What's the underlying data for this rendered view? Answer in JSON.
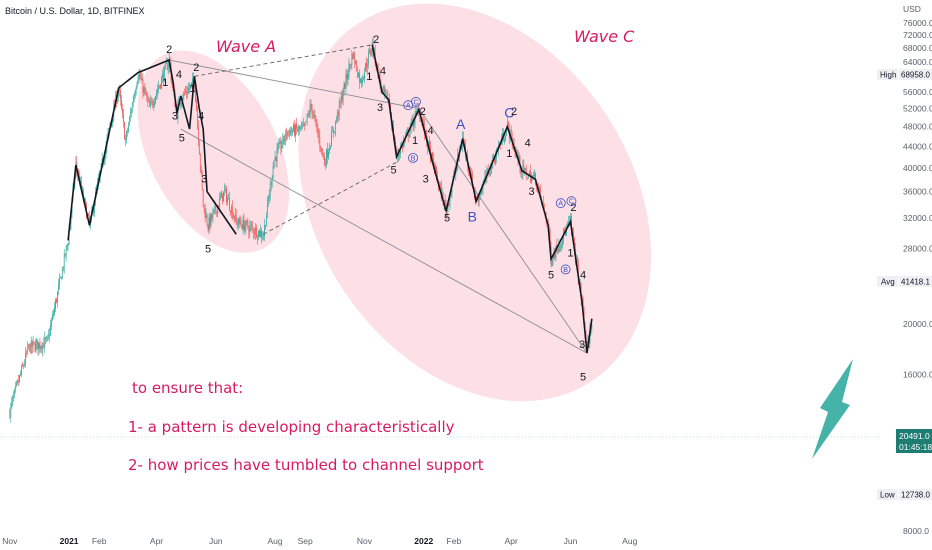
{
  "chart_data": {
    "type": "candlestick",
    "title": "Bitcoin / U.S. Dollar, 1D, BITFINEX",
    "currency": "USD",
    "y_scale": "log",
    "y_ticks": [
      8000,
      12000,
      16000,
      20000,
      24000,
      28000,
      32000,
      36000,
      40000,
      44000,
      48000,
      52000,
      56000,
      60000,
      64000,
      68000,
      72000,
      76000
    ],
    "x_ticks": [
      {
        "label": "Nov",
        "date": "2020-11-01",
        "bold": false
      },
      {
        "label": "2021",
        "date": "2021-01-01",
        "bold": true
      },
      {
        "label": "Feb",
        "date": "2021-02-01",
        "bold": false
      },
      {
        "label": "Apr",
        "date": "2021-04-01",
        "bold": false
      },
      {
        "label": "Jun",
        "date": "2021-06-01",
        "bold": false
      },
      {
        "label": "Aug",
        "date": "2021-08-01",
        "bold": false
      },
      {
        "label": "Sep",
        "date": "2021-09-01",
        "bold": false
      },
      {
        "label": "Nov",
        "date": "2021-11-01",
        "bold": false
      },
      {
        "label": "2022",
        "date": "2022-01-01",
        "bold": true
      },
      {
        "label": "Feb",
        "date": "2022-02-01",
        "bold": false
      },
      {
        "label": "Apr",
        "date": "2022-04-01",
        "bold": false
      },
      {
        "label": "Jun",
        "date": "2022-06-01",
        "bold": false
      },
      {
        "label": "Aug",
        "date": "2022-08-01",
        "bold": false
      }
    ],
    "price_path": [
      [
        "2020-11-01",
        13600
      ],
      [
        "2020-11-20",
        18000
      ],
      [
        "2020-12-10",
        18500
      ],
      [
        "2020-12-31",
        29000
      ],
      [
        "2021-01-08",
        40500
      ],
      [
        "2021-01-22",
        31000
      ],
      [
        "2021-02-10",
        46000
      ],
      [
        "2021-02-21",
        57000
      ],
      [
        "2021-02-28",
        45000
      ],
      [
        "2021-03-13",
        61000
      ],
      [
        "2021-03-25",
        52000
      ],
      [
        "2021-04-14",
        64500
      ],
      [
        "2021-04-18",
        56000
      ],
      [
        "2021-04-22",
        51000
      ],
      [
        "2021-04-26",
        54500
      ],
      [
        "2021-05-05",
        57000
      ],
      [
        "2021-05-10",
        58500
      ],
      [
        "2021-05-19",
        34000
      ],
      [
        "2021-05-24",
        31000
      ],
      [
        "2021-06-10",
        36000
      ],
      [
        "2021-06-22",
        31500
      ],
      [
        "2021-07-20",
        29800
      ],
      [
        "2021-07-31",
        41500
      ],
      [
        "2021-08-14",
        47000
      ],
      [
        "2021-08-31",
        47500
      ],
      [
        "2021-09-07",
        52700
      ],
      [
        "2021-09-21",
        41000
      ],
      [
        "2021-10-01",
        48000
      ],
      [
        "2021-10-20",
        66500
      ],
      [
        "2021-10-28",
        58500
      ],
      [
        "2021-11-09",
        69000
      ],
      [
        "2021-11-19",
        56000
      ],
      [
        "2021-11-26",
        54000
      ],
      [
        "2021-12-04",
        42000
      ],
      [
        "2021-12-27",
        51800
      ],
      [
        "2022-01-10",
        41000
      ],
      [
        "2022-01-24",
        33000
      ],
      [
        "2022-02-10",
        45500
      ],
      [
        "2022-02-24",
        34500
      ],
      [
        "2022-03-28",
        48000
      ],
      [
        "2022-04-12",
        39500
      ],
      [
        "2022-04-26",
        38000
      ],
      [
        "2022-05-09",
        31000
      ],
      [
        "2022-05-12",
        26700
      ],
      [
        "2022-05-24",
        29500
      ],
      [
        "2022-06-01",
        31500
      ],
      [
        "2022-06-13",
        22000
      ],
      [
        "2022-06-18",
        17600
      ],
      [
        "2022-06-23",
        20491
      ]
    ],
    "wave_path": [
      [
        "2020-12-31",
        29000
      ],
      [
        "2021-01-08",
        40500
      ],
      [
        "2021-01-22",
        31000
      ],
      [
        "2021-02-21",
        57000
      ],
      [
        "2021-03-13",
        61000
      ],
      [
        "2021-04-14",
        64500
      ],
      [
        "2021-04-18",
        58500
      ],
      [
        "2021-04-22",
        51000
      ],
      [
        "2021-04-26",
        55000
      ],
      [
        "2021-05-05",
        47500
      ],
      [
        "2021-05-10",
        60000
      ],
      [
        "2021-05-15",
        52000
      ],
      [
        "2021-05-19",
        47500
      ],
      [
        "2021-05-23",
        36000
      ],
      [
        "2021-06-22",
        29800
      ]
    ],
    "wave_labels": [
      {
        "text": "2",
        "date": "2021-04-14",
        "price": 66500,
        "size": "small"
      },
      {
        "text": "1",
        "date": "2021-04-10",
        "price": 57500,
        "size": "small"
      },
      {
        "text": "4",
        "date": "2021-04-24",
        "price": 59500,
        "size": "small"
      },
      {
        "text": "3",
        "date": "2021-04-20",
        "price": 49500,
        "size": "small"
      },
      {
        "text": "5",
        "date": "2021-04-27",
        "price": 45000,
        "size": "small"
      },
      {
        "text": "2",
        "date": "2021-05-12",
        "price": 61500,
        "size": "small"
      },
      {
        "text": "1",
        "date": "2021-05-08",
        "price": 56000,
        "size": "small"
      },
      {
        "text": "4",
        "date": "2021-05-17",
        "price": 49500,
        "size": "small"
      },
      {
        "text": "3",
        "date": "2021-05-20",
        "price": 37500,
        "size": "small"
      },
      {
        "text": "5",
        "date": "2021-05-24",
        "price": 27500,
        "size": "small"
      },
      {
        "text": "2",
        "date": "2021-11-13",
        "price": 69500,
        "size": "small"
      },
      {
        "text": "1",
        "date": "2021-11-06",
        "price": 59000,
        "size": "small"
      },
      {
        "text": "4",
        "date": "2021-11-20",
        "price": 60500,
        "size": "small"
      },
      {
        "text": "3",
        "date": "2021-11-17",
        "price": 51500,
        "size": "small"
      },
      {
        "text": "5",
        "date": "2021-12-01",
        "price": 39000,
        "size": "small"
      },
      {
        "text": "2",
        "date": "2021-12-31",
        "price": 50500,
        "size": "small"
      },
      {
        "text": "1",
        "date": "2021-12-23",
        "price": 44500,
        "size": "small"
      },
      {
        "text": "4",
        "date": "2022-01-08",
        "price": 46500,
        "size": "small"
      },
      {
        "text": "3",
        "date": "2022-01-03",
        "price": 37500,
        "size": "small"
      },
      {
        "text": "5",
        "date": "2022-01-25",
        "price": 31500,
        "size": "small"
      },
      {
        "text": "A",
        "date": "2022-02-08",
        "price": 47500,
        "size": "big"
      },
      {
        "text": "B",
        "date": "2022-02-20",
        "price": 31500,
        "size": "big"
      },
      {
        "text": "C",
        "date": "2022-03-30",
        "price": 50000,
        "size": "big"
      },
      {
        "text": "2",
        "date": "2022-04-04",
        "price": 50500,
        "size": "small"
      },
      {
        "text": "1",
        "date": "2022-03-30",
        "price": 42000,
        "size": "small"
      },
      {
        "text": "4",
        "date": "2022-04-18",
        "price": 44000,
        "size": "small"
      },
      {
        "text": "3",
        "date": "2022-04-22",
        "price": 35500,
        "size": "small"
      },
      {
        "text": "5",
        "date": "2022-05-12",
        "price": 24500,
        "size": "small"
      },
      {
        "text": "2",
        "date": "2022-06-04",
        "price": 33000,
        "size": "small"
      },
      {
        "text": "1",
        "date": "2022-06-01",
        "price": 27000,
        "size": "small"
      },
      {
        "text": "4",
        "date": "2022-06-14",
        "price": 24500,
        "size": "small"
      },
      {
        "text": "3",
        "date": "2022-06-13",
        "price": 18000,
        "size": "small"
      },
      {
        "text": "5",
        "date": "2022-06-14",
        "price": 15600,
        "size": "small"
      }
    ],
    "circle_labels": [
      {
        "text": "A",
        "date": "2021-12-16",
        "price": 52800
      },
      {
        "text": "B",
        "date": "2021-12-21",
        "price": 41800
      },
      {
        "text": "C",
        "date": "2021-12-24",
        "price": 53600
      },
      {
        "text": "A",
        "date": "2022-05-22",
        "price": 34200
      },
      {
        "text": "B",
        "date": "2022-05-27",
        "price": 25500
      },
      {
        "text": "C",
        "date": "2022-06-02",
        "price": 34500
      }
    ],
    "trendlines": [
      {
        "style": "solid",
        "from": [
          "2021-04-14",
          64500
        ],
        "to": [
          "2021-12-27",
          52000
        ]
      },
      {
        "style": "solid",
        "from": [
          "2021-12-27",
          52000
        ],
        "to": [
          "2022-06-18",
          17600
        ]
      },
      {
        "style": "solid",
        "from": [
          "2021-04-26",
          47500
        ],
        "to": [
          "2022-06-18",
          17600
        ]
      },
      {
        "style": "dashed",
        "from": [
          "2021-05-10",
          60000
        ],
        "to": [
          "2021-11-09",
          69000
        ]
      },
      {
        "style": "dashed",
        "from": [
          "2021-07-20",
          29800
        ],
        "to": [
          "2021-12-04",
          41000
        ]
      }
    ],
    "annotations": {
      "wave_a_title": "Wave A",
      "wave_c_title": "Wave C",
      "note_line1": "to ensure that:",
      "note_line2": "1- a pattern is developing characteristically",
      "note_line3": "2- how prices have tumbled to channel support"
    },
    "markers": {
      "high_label": "High",
      "high_value": "68958.0",
      "high_price": 68958,
      "avg_label": "Avg",
      "avg_value": "41418.1",
      "avg_price": 41418.1,
      "low_label": "Low",
      "low_value": "12738.0",
      "low_price": 12738,
      "last_value": "20491.0",
      "last_price": 20491,
      "countdown": "01:45:18"
    },
    "colors": {
      "up": "#26a69a",
      "down": "#ef5350",
      "wave": "#131722",
      "ellipse": "#f8bbc5",
      "label": "#d81b60",
      "abc": "#3d4fc4",
      "arrow": "#26a69a",
      "last_tag": "#1f7c73"
    }
  }
}
